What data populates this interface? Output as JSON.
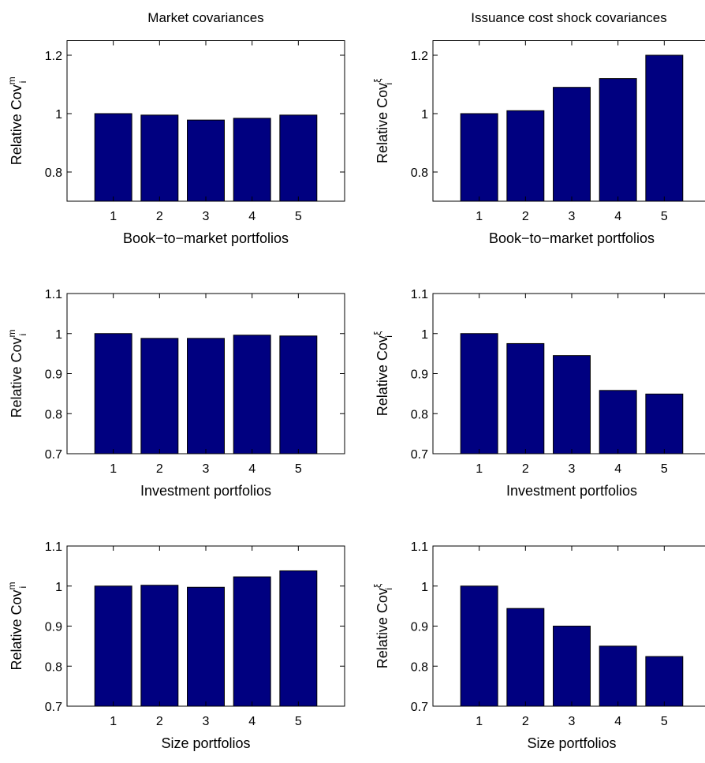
{
  "chart_data": [
    {
      "type": "bar",
      "title": "Market covariances",
      "xlabel": "Book−to−market portfolios",
      "ylabel": "Relative Cov",
      "ylabel_superscript": "m",
      "ylabel_subscript": "i",
      "color": "#000080",
      "x": [
        1,
        2,
        3,
        4,
        5
      ],
      "values": [
        1,
        0.995,
        0.978,
        0.984,
        0.995
      ],
      "xlim": [
        0,
        6
      ],
      "xticks": [
        1,
        2,
        3,
        4,
        5
      ],
      "ylim": [
        0.7,
        1.25
      ],
      "yticks": [
        0.8,
        1,
        1.2
      ]
    },
    {
      "type": "bar",
      "title": "Issuance cost shock covariances",
      "xlabel": "Book−to−market portfolios",
      "ylabel": "Relative Cov",
      "ylabel_superscript": "ξ",
      "ylabel_subscript": "i",
      "color": "#000080",
      "x": [
        1,
        2,
        3,
        4,
        5
      ],
      "values": [
        1,
        1.01,
        1.09,
        1.12,
        1.2
      ],
      "xlim": [
        0,
        6
      ],
      "xticks": [
        1,
        2,
        3,
        4,
        5
      ],
      "ylim": [
        0.7,
        1.25
      ],
      "yticks": [
        0.8,
        1,
        1.2
      ]
    },
    {
      "type": "bar",
      "xlabel": "Investment portfolios",
      "ylabel": "Relative Cov",
      "ylabel_superscript": "m",
      "ylabel_subscript": "i",
      "color": "#000080",
      "x": [
        1,
        2,
        3,
        4,
        5
      ],
      "values": [
        1,
        0.988,
        0.988,
        0.996,
        0.994
      ],
      "xlim": [
        0,
        6
      ],
      "xticks": [
        1,
        2,
        3,
        4,
        5
      ],
      "ylim": [
        0.7,
        1.1
      ],
      "yticks": [
        0.7,
        0.8,
        0.9,
        1,
        1.1
      ]
    },
    {
      "type": "bar",
      "xlabel": "Investment portfolios",
      "ylabel": "Relative Cov",
      "ylabel_superscript": "ξ",
      "ylabel_subscript": "i",
      "color": "#000080",
      "x": [
        1,
        2,
        3,
        4,
        5
      ],
      "values": [
        1,
        0.975,
        0.945,
        0.858,
        0.849
      ],
      "xlim": [
        0,
        6
      ],
      "xticks": [
        1,
        2,
        3,
        4,
        5
      ],
      "ylim": [
        0.7,
        1.1
      ],
      "yticks": [
        0.7,
        0.8,
        0.9,
        1,
        1.1
      ]
    },
    {
      "type": "bar",
      "xlabel": "Size portfolios",
      "ylabel": "Relative Cov",
      "ylabel_superscript": "m",
      "ylabel_subscript": "i",
      "color": "#000080",
      "x": [
        1,
        2,
        3,
        4,
        5
      ],
      "values": [
        1,
        1.002,
        0.997,
        1.023,
        1.038
      ],
      "xlim": [
        0,
        6
      ],
      "xticks": [
        1,
        2,
        3,
        4,
        5
      ],
      "ylim": [
        0.7,
        1.1
      ],
      "yticks": [
        0.7,
        0.8,
        0.9,
        1,
        1.1
      ]
    },
    {
      "type": "bar",
      "xlabel": "Size portfolios",
      "ylabel": "Relative Cov",
      "ylabel_superscript": "ξ",
      "ylabel_subscript": "i",
      "color": "#000080",
      "x": [
        1,
        2,
        3,
        4,
        5
      ],
      "values": [
        1,
        0.944,
        0.9,
        0.85,
        0.824
      ],
      "xlim": [
        0,
        6
      ],
      "xticks": [
        1,
        2,
        3,
        4,
        5
      ],
      "ylim": [
        0.7,
        1.1
      ],
      "yticks": [
        0.7,
        0.8,
        0.9,
        1,
        1.1
      ]
    }
  ]
}
